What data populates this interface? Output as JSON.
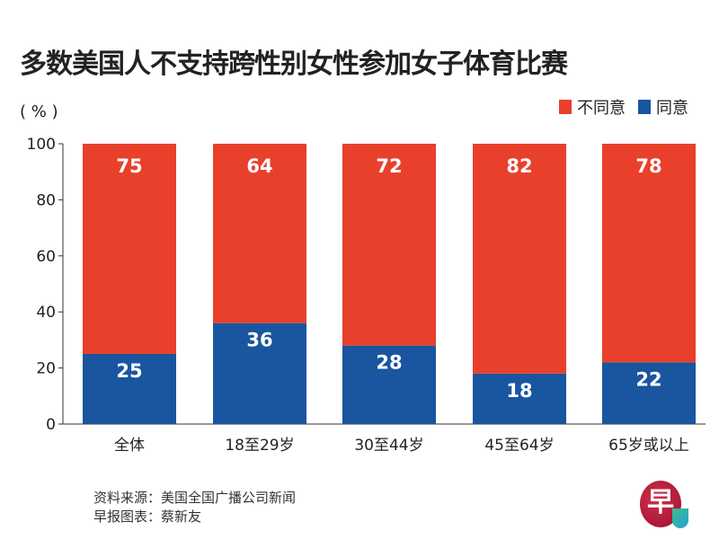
{
  "chart_data": {
    "type": "bar",
    "stacked": true,
    "title": "多数美国人不支持跨性别女性参加女子体育比赛",
    "ylabel": "（%）",
    "ylim": [
      0,
      100
    ],
    "yticks": [
      0,
      20,
      40,
      60,
      80,
      100
    ],
    "categories": [
      "全体",
      "18至29岁",
      "30至44岁",
      "45至64岁",
      "65岁或以上"
    ],
    "series": [
      {
        "name": "同意",
        "color": "#1a55a0",
        "values": [
          25,
          36,
          28,
          18,
          22
        ]
      },
      {
        "name": "不同意",
        "color": "#e8402b",
        "values": [
          75,
          64,
          72,
          82,
          78
        ]
      }
    ],
    "legend_order": [
      "不同意",
      "同意"
    ],
    "legend_position": "top-right"
  },
  "unit": "( % )",
  "source": [
    "资料来源：美国全国广播公司新闻",
    "早报图表：蔡新友"
  ],
  "logo_text": "早"
}
